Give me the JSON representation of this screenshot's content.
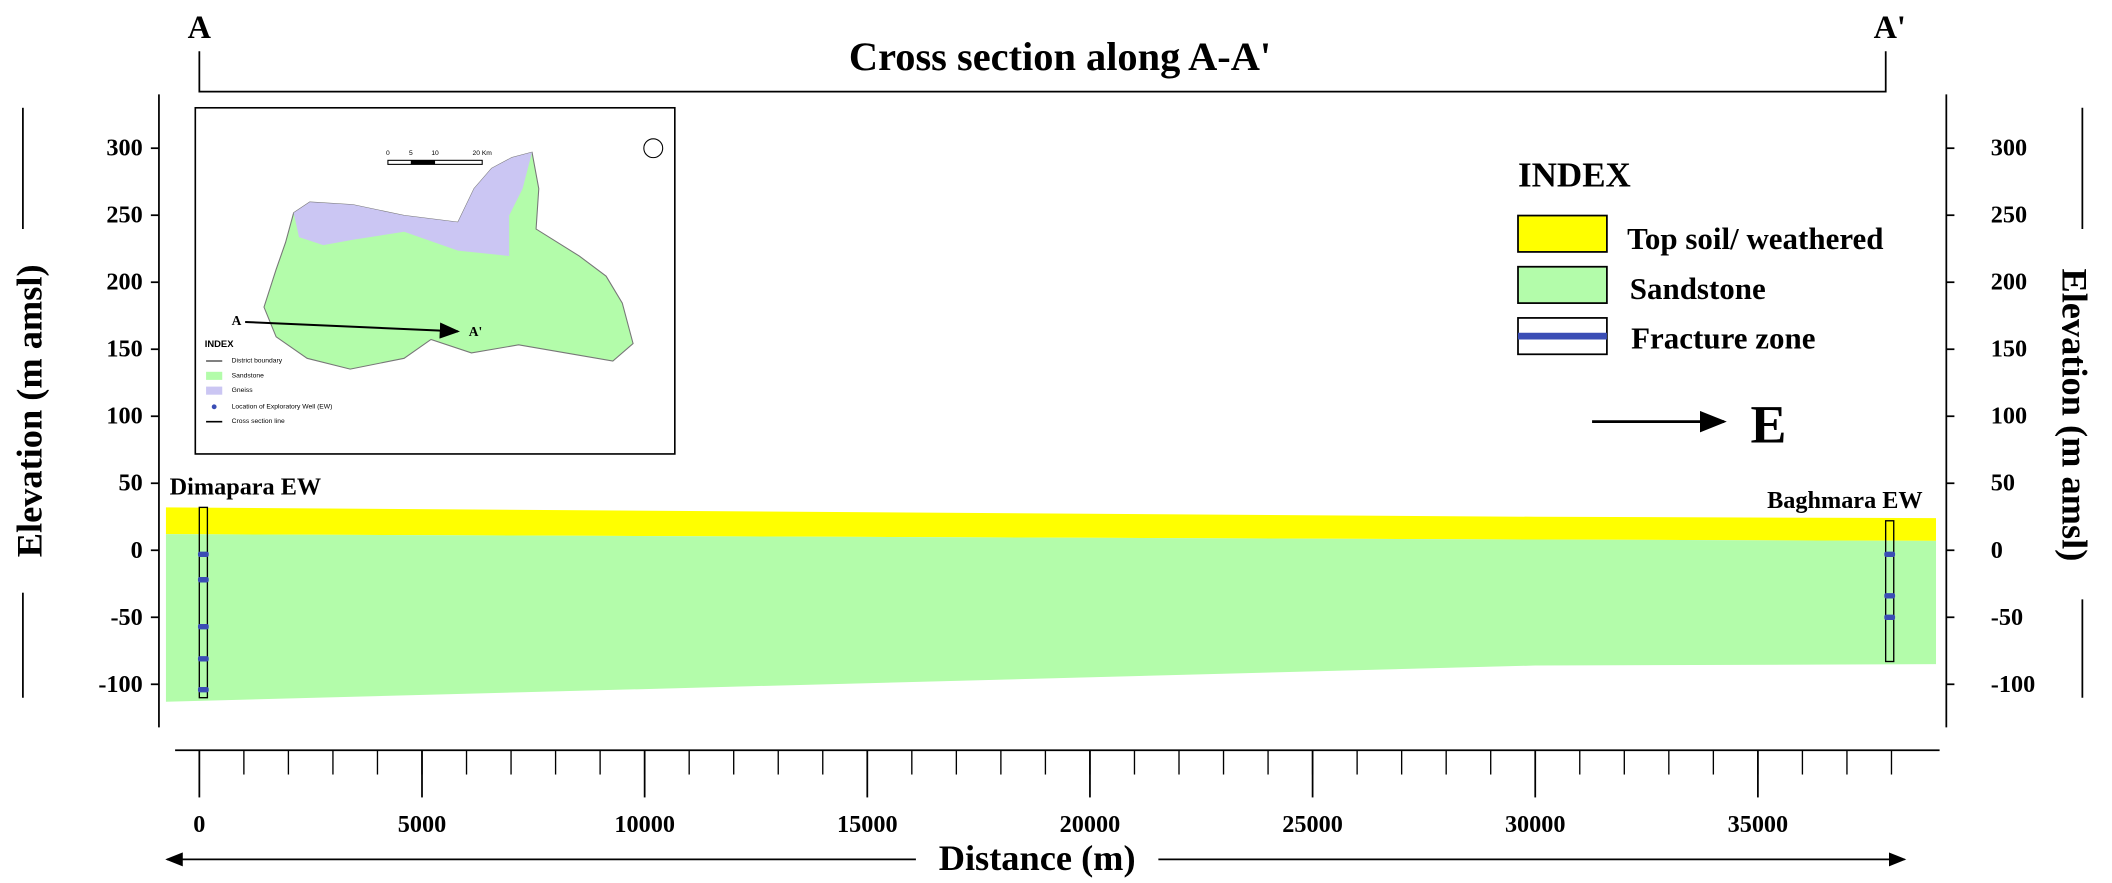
{
  "chart_data": {
    "type": "cross-section",
    "title": "Cross section along A-A'",
    "section_start": "A",
    "section_end": "A'",
    "direction": "E",
    "xlabel": "Distance (m)",
    "ylabel": "Elevation (m amsl)",
    "xlim": [
      -750,
      39000
    ],
    "ylim": [
      -130,
      340
    ],
    "xticks": [
      0,
      5000,
      10000,
      15000,
      20000,
      25000,
      30000,
      35000
    ],
    "xminorticks": [
      0,
      1000,
      2000,
      3000,
      4000,
      5000,
      6000,
      7000,
      8000,
      9000,
      10000,
      11000,
      12000,
      13000,
      14000,
      15000,
      16000,
      17000,
      18000,
      19000,
      20000,
      21000,
      22000,
      23000,
      24000,
      25000,
      26000,
      27000,
      28000,
      29000,
      30000,
      31000,
      32000,
      33000,
      34000,
      35000,
      36000,
      37000,
      38000
    ],
    "yticks": [
      -100,
      -50,
      0,
      50,
      100,
      150,
      200,
      250,
      300
    ],
    "x": [
      -750,
      30000,
      39000
    ],
    "layers": [
      {
        "name": "Top soil/ weathered",
        "color": "#ffff00",
        "top": [
          32,
          25,
          24
        ],
        "bottom": [
          12,
          8,
          7
        ]
      },
      {
        "name": "Sandstone",
        "color": "#b3fcaa",
        "top": [
          12,
          8,
          7
        ],
        "bottom": [
          -113,
          -86,
          -85
        ]
      }
    ],
    "legend_title": "INDEX",
    "fracture_zone": {
      "name": "Fracture zone",
      "color": "#3a4db5"
    },
    "wells": [
      {
        "name": "Dimapara EW",
        "x": 90,
        "top": 32,
        "bottom": -110,
        "fractures": [
          -3,
          -22,
          -57,
          -81,
          -104
        ]
      },
      {
        "name": "Baghmara EW",
        "x": 37960,
        "top": 22,
        "bottom": -83,
        "fractures": [
          -3,
          -34,
          -50
        ]
      }
    ],
    "inset": {
      "legend_title": "INDEX",
      "items": [
        "District boundary",
        "Sandstone",
        "Gneiss",
        "Location of Exploratory Well (EW)",
        "Cross section line"
      ],
      "scale_labels": [
        "0",
        "5",
        "10",
        "20 Km"
      ],
      "point_labels": [
        "A",
        "A'"
      ]
    }
  }
}
